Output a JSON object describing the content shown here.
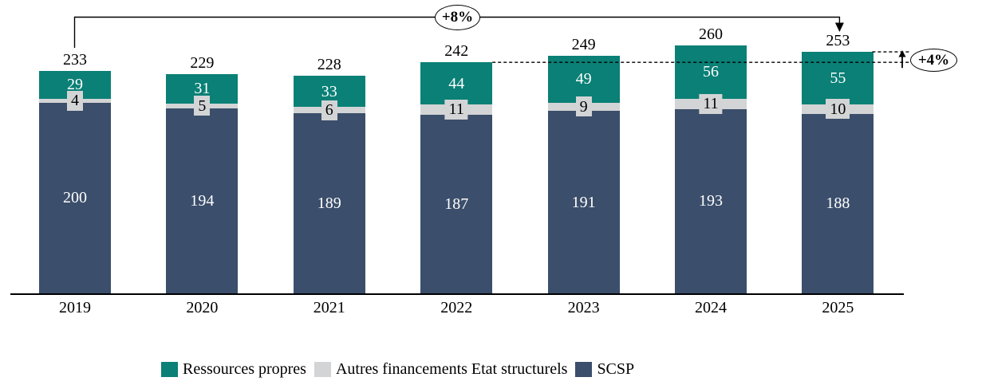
{
  "chart_data": {
    "type": "bar",
    "stacked": true,
    "categories": [
      "2019",
      "2020",
      "2021",
      "2022",
      "2023",
      "2024",
      "2025"
    ],
    "series": [
      {
        "name": "SCSP",
        "color": "#3b4e6b",
        "label_color": "#ffffff",
        "values": [
          200,
          194,
          189,
          187,
          191,
          193,
          188
        ]
      },
      {
        "name": "Autres financements Etat structurels",
        "color": "#d3d4d5",
        "label_color": "#000000",
        "values": [
          4,
          5,
          6,
          11,
          9,
          11,
          10
        ]
      },
      {
        "name": "Ressources propres",
        "color": "#0a8076",
        "label_color": "#ffffff",
        "values": [
          29,
          31,
          33,
          44,
          49,
          56,
          55
        ]
      }
    ],
    "totals": [
      233,
      229,
      228,
      242,
      249,
      260,
      253
    ],
    "title": "",
    "xlabel": "",
    "ylabel": "",
    "ylim": [
      0,
      280
    ],
    "grid": false,
    "legend_position": "bottom",
    "annotations": [
      {
        "label": "+8%",
        "type": "bracket-arrow",
        "from_category": "2019",
        "to_category": "2025"
      },
      {
        "label": "+4%",
        "type": "delta-dashed",
        "from_level": 242,
        "to_level": 253
      }
    ]
  },
  "annotations": {
    "top_label": "+8%",
    "right_label": "+4%"
  },
  "legend": {
    "items": [
      {
        "label": "Ressources propres",
        "color": "#0a8076"
      },
      {
        "label": "Autres financements Etat structurels",
        "color": "#d3d4d5"
      },
      {
        "label": "SCSP",
        "color": "#3b4e6b"
      }
    ]
  }
}
